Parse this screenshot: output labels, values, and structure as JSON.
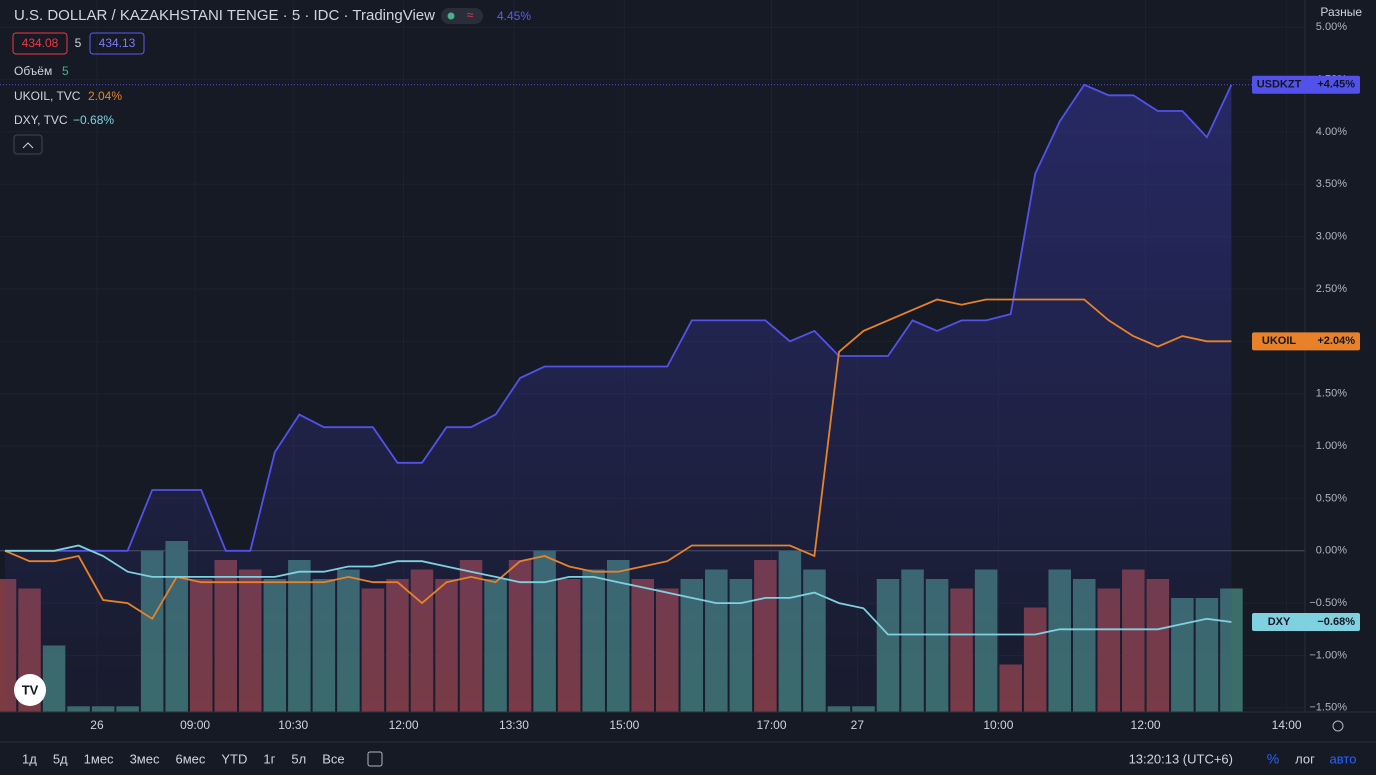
{
  "header": {
    "title": "U.S. DOLLAR / KAZAKHSTANI TENGE · 5 · IDC · TradingView",
    "change": "4.45%",
    "bid": "434.08",
    "spread": "5",
    "ask": "434.13",
    "scale_menu": "Разные"
  },
  "legend": [
    {
      "name": "Объём",
      "value": "5"
    },
    {
      "name": "UKOIL, TVC",
      "value": "2.04%"
    },
    {
      "name": "DXY, TVC",
      "value": "−0.68%"
    }
  ],
  "toolbar": {
    "ranges": [
      "1д",
      "5д",
      "1мес",
      "3мес",
      "6мес",
      "YTD",
      "1г",
      "5л",
      "Все"
    ],
    "clock": "13:20:13 (UTC+6)",
    "percent": "%",
    "log": "лог",
    "auto": "авто"
  },
  "chart_data": {
    "type": "line",
    "grid": true,
    "x": [
      0,
      4,
      8,
      12,
      16,
      20,
      24,
      28,
      32,
      36,
      40,
      44,
      48,
      52,
      56,
      60,
      64,
      68,
      72,
      76,
      80,
      84,
      88,
      92,
      96,
      100,
      104,
      108,
      112,
      116,
      120,
      124,
      128,
      132,
      136,
      140,
      144,
      148,
      152,
      156,
      160,
      164,
      168,
      172,
      176,
      180,
      184,
      188,
      192,
      196,
      200
    ],
    "xlim": [
      0,
      212
    ],
    "xticks": [
      {
        "value": 15,
        "label": "26"
      },
      {
        "value": 31,
        "label": "09:00"
      },
      {
        "value": 47,
        "label": "10:30"
      },
      {
        "value": 65,
        "label": "12:00"
      },
      {
        "value": 83,
        "label": "13:30"
      },
      {
        "value": 101,
        "label": "15:00"
      },
      {
        "value": 125,
        "label": "17:00"
      },
      {
        "value": 139,
        "label": "27"
      },
      {
        "value": 162,
        "label": "10:00"
      },
      {
        "value": 186,
        "label": "12:00"
      },
      {
        "value": 209,
        "label": "14:00"
      }
    ],
    "ylim": [
      -1.54,
      5.26
    ],
    "yticks": [
      {
        "value": -1.5,
        "label": "−1.50%"
      },
      {
        "value": -1,
        "label": "−1.00%"
      },
      {
        "value": -0.5,
        "label": "−0.50%"
      },
      {
        "value": 0,
        "label": "0.00%"
      },
      {
        "value": 0.5,
        "label": "0.50%"
      },
      {
        "value": 1,
        "label": "1.00%"
      },
      {
        "value": 1.5,
        "label": "1.50%"
      },
      {
        "value": 2,
        "label": "2.00%"
      },
      {
        "value": 2.5,
        "label": "2.50%"
      },
      {
        "value": 3,
        "label": "3.00%"
      },
      {
        "value": 3.5,
        "label": "3.50%"
      },
      {
        "value": 4,
        "label": "4.00%"
      },
      {
        "value": 4.5,
        "label": "4.50%"
      },
      {
        "value": 5,
        "label": "5.00%"
      }
    ],
    "series": [
      {
        "name": "USDKZT",
        "color": "#5252ea",
        "tag": "+4.45%",
        "values": [
          0,
          0,
          0,
          0,
          0,
          0,
          0.58,
          0.58,
          0.58,
          0,
          0,
          0.94,
          1.3,
          1.18,
          1.18,
          1.18,
          0.84,
          0.84,
          1.18,
          1.18,
          1.3,
          1.65,
          1.76,
          1.76,
          1.76,
          1.76,
          1.76,
          1.76,
          2.2,
          2.2,
          2.2,
          2.2,
          2.0,
          2.1,
          1.86,
          1.86,
          1.86,
          2.2,
          2.1,
          2.2,
          2.2,
          2.26,
          3.6,
          4.1,
          4.45,
          4.35,
          4.35,
          4.2,
          4.2,
          3.95,
          4.45
        ]
      },
      {
        "name": "UKOIL",
        "color": "#e8822a",
        "tag": "+2.04%",
        "values": [
          0,
          -0.1,
          -0.1,
          -0.05,
          -0.47,
          -0.5,
          -0.65,
          -0.25,
          -0.3,
          -0.3,
          -0.3,
          -0.3,
          -0.3,
          -0.3,
          -0.25,
          -0.3,
          -0.3,
          -0.5,
          -0.3,
          -0.25,
          -0.3,
          -0.1,
          -0.05,
          -0.15,
          -0.2,
          -0.2,
          -0.15,
          -0.1,
          0.05,
          0.05,
          0.05,
          0.05,
          0.05,
          -0.05,
          1.9,
          2.1,
          2.2,
          2.3,
          2.4,
          2.35,
          2.4,
          2.4,
          2.4,
          2.4,
          2.4,
          2.2,
          2.05,
          1.95,
          2.05,
          2.0,
          2.0
        ]
      },
      {
        "name": "DXY",
        "color": "#7fd1e0",
        "tag": "−0.68%",
        "values": [
          0,
          0,
          0,
          0.05,
          -0.05,
          -0.2,
          -0.25,
          -0.25,
          -0.25,
          -0.25,
          -0.25,
          -0.25,
          -0.2,
          -0.2,
          -0.15,
          -0.15,
          -0.1,
          -0.1,
          -0.15,
          -0.2,
          -0.25,
          -0.3,
          -0.3,
          -0.25,
          -0.25,
          -0.3,
          -0.35,
          -0.4,
          -0.45,
          -0.5,
          -0.5,
          -0.45,
          -0.45,
          -0.4,
          -0.5,
          -0.55,
          -0.8,
          -0.8,
          -0.8,
          -0.8,
          -0.8,
          -0.8,
          -0.8,
          -0.75,
          -0.75,
          -0.75,
          -0.75,
          -0.75,
          -0.7,
          -0.65,
          -0.68
        ]
      }
    ],
    "volume": {
      "values": [
        70,
        65,
        35,
        3,
        3,
        3,
        85,
        90,
        70,
        80,
        75,
        70,
        80,
        70,
        75,
        65,
        70,
        75,
        70,
        80,
        70,
        80,
        85,
        70,
        75,
        80,
        70,
        65,
        70,
        75,
        70,
        80,
        85,
        75,
        3,
        3,
        70,
        75,
        70,
        65,
        75,
        25,
        55,
        75,
        70,
        65,
        75,
        70,
        60,
        60,
        65
      ],
      "colors": [
        "#7b3b41",
        "#7b3b41",
        "#3b6d69",
        "#3b6d69",
        "#3b6d69",
        "#3b6d69",
        "#3b6d69",
        "#3b6d69",
        "#7b3b41",
        "#7b3b41",
        "#7b3b41",
        "#3b6d69",
        "#3b6d69",
        "#3b6d69",
        "#3b6d69",
        "#7b3b41",
        "#7b3b41",
        "#7b3b41",
        "#7b3b41",
        "#7b3b41",
        "#3b6d69",
        "#7b3b41",
        "#3b6d69",
        "#7b3b41",
        "#3b6d69",
        "#3b6d69",
        "#7b3b41",
        "#7b3b41",
        "#3b6d69",
        "#3b6d69",
        "#3b6d69",
        "#7b3b41",
        "#3b6d69",
        "#3b6d69",
        "#3b6d69",
        "#3b6d69",
        "#3b6d69",
        "#3b6d69",
        "#3b6d69",
        "#7b3b41",
        "#3b6d69",
        "#7b3b41",
        "#7b3b41",
        "#3b6d69",
        "#3b6d69",
        "#7b3b41",
        "#7b3b41",
        "#7b3b41",
        "#3b6d69",
        "#3b6d69",
        "#3b6d69"
      ]
    }
  }
}
